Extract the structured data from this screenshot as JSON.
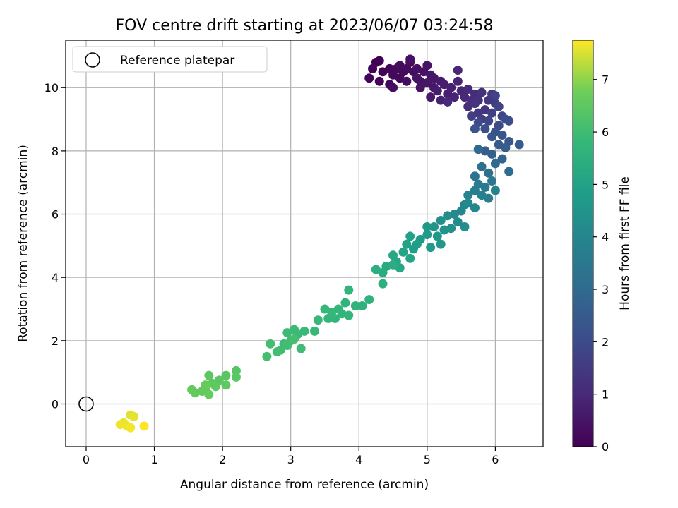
{
  "chart_data": {
    "type": "scatter",
    "title": "FOV centre drift starting at 2023/06/07 03:24:58",
    "xlabel": "Angular distance from reference (arcmin)",
    "ylabel": "Rotation from reference (arcmin)",
    "xlim": [
      -0.3,
      6.7
    ],
    "ylim": [
      -1.35,
      11.5
    ],
    "xticks": [
      0,
      1,
      2,
      3,
      4,
      5,
      6
    ],
    "yticks": [
      0,
      2,
      4,
      6,
      8,
      10
    ],
    "grid": true,
    "legend": {
      "location": "top-left",
      "entries": [
        "Reference platepar"
      ]
    },
    "reference_point": {
      "x": 0,
      "y": 0,
      "label": "Reference platepar"
    },
    "colorbar": {
      "label": "Hours from first FF file",
      "colormap": "viridis",
      "range": [
        0,
        7.75
      ],
      "ticks": [
        0,
        1,
        2,
        3,
        4,
        5,
        6,
        7
      ]
    },
    "points": [
      [
        4.25,
        10.8,
        0.0
      ],
      [
        4.3,
        10.85,
        0.03
      ],
      [
        4.2,
        10.6,
        0.05
      ],
      [
        4.15,
        10.3,
        0.07
      ],
      [
        4.35,
        10.5,
        0.09
      ],
      [
        4.3,
        10.2,
        0.11
      ],
      [
        4.45,
        10.6,
        0.13
      ],
      [
        4.5,
        10.4,
        0.15
      ],
      [
        4.45,
        10.1,
        0.17
      ],
      [
        4.55,
        10.6,
        0.19
      ],
      [
        4.6,
        10.3,
        0.21
      ],
      [
        4.65,
        10.5,
        0.23
      ],
      [
        4.6,
        10.7,
        0.25
      ],
      [
        4.7,
        10.6,
        0.27
      ],
      [
        4.75,
        10.8,
        0.29
      ],
      [
        4.7,
        10.2,
        0.31
      ],
      [
        4.5,
        10.0,
        0.33
      ],
      [
        4.8,
        10.5,
        0.35
      ],
      [
        4.75,
        10.9,
        0.37
      ],
      [
        4.85,
        10.6,
        0.39
      ],
      [
        4.9,
        10.2,
        0.41
      ],
      [
        4.95,
        10.5,
        0.43
      ],
      [
        5.0,
        10.7,
        0.45
      ],
      [
        4.85,
        10.3,
        0.47
      ],
      [
        4.9,
        10.0,
        0.49
      ],
      [
        5.05,
        10.4,
        0.51
      ],
      [
        5.0,
        10.15,
        0.53
      ],
      [
        5.1,
        10.3,
        0.55
      ],
      [
        5.1,
        10.0,
        0.58
      ],
      [
        5.2,
        10.2,
        0.62
      ],
      [
        5.05,
        9.7,
        0.65
      ],
      [
        5.15,
        9.9,
        0.68
      ],
      [
        5.25,
        10.1,
        0.72
      ],
      [
        5.3,
        9.8,
        0.75
      ],
      [
        5.35,
        10.0,
        0.78
      ],
      [
        5.2,
        9.6,
        0.82
      ],
      [
        5.4,
        9.7,
        0.85
      ],
      [
        5.45,
        10.2,
        0.88
      ],
      [
        5.5,
        9.9,
        0.92
      ],
      [
        5.45,
        10.55,
        0.95
      ],
      [
        5.55,
        9.7,
        0.98
      ],
      [
        5.3,
        9.55,
        1.02
      ],
      [
        5.6,
        9.95,
        1.05
      ],
      [
        5.65,
        9.6,
        1.08
      ],
      [
        5.7,
        9.8,
        1.12
      ],
      [
        5.6,
        9.4,
        1.15
      ],
      [
        5.75,
        9.6,
        1.2
      ],
      [
        5.8,
        9.85,
        1.25
      ],
      [
        5.7,
        9.5,
        1.3
      ],
      [
        5.85,
        9.3,
        1.35
      ],
      [
        5.9,
        9.6,
        1.4
      ],
      [
        5.75,
        9.2,
        1.45
      ],
      [
        5.95,
        9.8,
        1.5
      ],
      [
        6.0,
        9.5,
        1.55
      ],
      [
        5.65,
        9.1,
        1.6
      ],
      [
        5.8,
        9.0,
        1.65
      ],
      [
        5.95,
        9.2,
        1.7
      ],
      [
        6.05,
        9.4,
        1.75
      ],
      [
        6.0,
        9.75,
        1.8
      ],
      [
        5.9,
        8.95,
        1.85
      ],
      [
        6.1,
        9.1,
        1.9
      ],
      [
        5.75,
        8.9,
        1.95
      ],
      [
        6.05,
        8.8,
        2.0
      ],
      [
        6.15,
        9.0,
        2.05
      ],
      [
        6.2,
        8.95,
        2.1
      ],
      [
        5.85,
        8.7,
        2.15
      ],
      [
        6.0,
        8.6,
        2.2
      ],
      [
        5.7,
        8.7,
        2.25
      ],
      [
        6.1,
        8.5,
        2.3
      ],
      [
        5.95,
        8.45,
        2.35
      ],
      [
        6.2,
        8.3,
        2.4
      ],
      [
        6.05,
        8.2,
        2.45
      ],
      [
        6.35,
        8.2,
        2.5
      ],
      [
        6.15,
        8.1,
        2.55
      ],
      [
        5.85,
        8.0,
        2.6
      ],
      [
        5.95,
        7.9,
        2.7
      ],
      [
        6.1,
        7.75,
        2.8
      ],
      [
        6.0,
        7.6,
        2.9
      ],
      [
        5.75,
        8.05,
        3.0
      ],
      [
        6.2,
        7.35,
        3.05
      ],
      [
        5.8,
        7.5,
        3.15
      ],
      [
        5.9,
        7.3,
        3.25
      ],
      [
        5.7,
        7.2,
        3.35
      ],
      [
        5.95,
        7.05,
        3.45
      ],
      [
        5.85,
        6.85,
        3.55
      ],
      [
        5.75,
        6.95,
        3.62
      ],
      [
        5.9,
        6.5,
        3.68
      ],
      [
        5.7,
        6.75,
        3.75
      ],
      [
        6.0,
        6.75,
        3.8
      ],
      [
        5.8,
        6.6,
        3.85
      ],
      [
        5.6,
        6.6,
        3.9
      ],
      [
        5.55,
        6.3,
        3.95
      ],
      [
        5.7,
        6.2,
        4.0
      ],
      [
        5.5,
        6.1,
        4.05
      ],
      [
        5.6,
        6.35,
        4.1
      ],
      [
        5.4,
        6.0,
        4.15
      ],
      [
        5.45,
        5.75,
        4.2
      ],
      [
        5.3,
        5.95,
        4.25
      ],
      [
        5.55,
        5.6,
        4.3
      ],
      [
        5.35,
        5.55,
        4.35
      ],
      [
        5.2,
        5.8,
        4.4
      ],
      [
        5.25,
        5.5,
        4.45
      ],
      [
        5.1,
        5.6,
        4.5
      ],
      [
        5.15,
        5.3,
        4.55
      ],
      [
        5.0,
        5.6,
        4.6
      ],
      [
        5.2,
        5.05,
        4.65
      ],
      [
        5.0,
        5.35,
        4.7
      ],
      [
        4.9,
        5.2,
        4.75
      ],
      [
        5.05,
        4.95,
        4.8
      ],
      [
        4.85,
        5.05,
        4.85
      ],
      [
        4.8,
        4.9,
        4.9
      ],
      [
        4.75,
        5.3,
        4.95
      ],
      [
        4.7,
        5.05,
        5.0
      ],
      [
        4.65,
        4.8,
        5.05
      ],
      [
        4.75,
        4.6,
        5.1
      ],
      [
        4.55,
        4.5,
        5.15
      ],
      [
        4.5,
        4.7,
        5.2
      ],
      [
        4.6,
        4.3,
        5.25
      ],
      [
        4.4,
        4.35,
        5.3
      ],
      [
        4.35,
        4.15,
        5.35
      ],
      [
        4.5,
        4.4,
        5.4
      ],
      [
        4.25,
        4.25,
        5.45
      ],
      [
        4.35,
        3.8,
        5.5
      ],
      [
        4.05,
        3.1,
        5.55
      ],
      [
        4.15,
        3.3,
        5.6
      ],
      [
        3.95,
        3.1,
        5.62
      ],
      [
        3.8,
        3.2,
        5.65
      ],
      [
        3.85,
        3.6,
        5.68
      ],
      [
        3.75,
        2.85,
        5.7
      ],
      [
        3.7,
        3.0,
        5.72
      ],
      [
        3.65,
        2.7,
        5.74
      ],
      [
        3.55,
        2.7,
        5.76
      ],
      [
        3.85,
        2.8,
        5.78
      ],
      [
        3.5,
        3.0,
        5.8
      ],
      [
        3.6,
        2.9,
        5.82
      ],
      [
        3.4,
        2.65,
        5.84
      ],
      [
        3.35,
        2.3,
        5.86
      ],
      [
        3.2,
        2.3,
        5.88
      ],
      [
        3.1,
        2.2,
        5.9
      ],
      [
        3.05,
        2.35,
        5.92
      ],
      [
        2.95,
        2.25,
        5.94
      ],
      [
        3.0,
        2.0,
        5.96
      ],
      [
        2.9,
        1.9,
        5.98
      ],
      [
        2.85,
        1.7,
        6.0
      ],
      [
        3.15,
        1.75,
        6.02
      ],
      [
        2.95,
        1.85,
        6.04
      ],
      [
        2.7,
        1.9,
        6.06
      ],
      [
        2.8,
        1.65,
        6.08
      ],
      [
        2.65,
        1.5,
        6.1
      ],
      [
        3.05,
        2.05,
        6.12
      ],
      [
        2.2,
        1.05,
        6.4
      ],
      [
        2.05,
        0.9,
        6.42
      ],
      [
        2.2,
        0.85,
        6.44
      ],
      [
        1.95,
        0.75,
        6.46
      ],
      [
        1.8,
        0.9,
        6.48
      ],
      [
        1.85,
        0.65,
        6.5
      ],
      [
        2.05,
        0.6,
        6.52
      ],
      [
        1.9,
        0.55,
        6.54
      ],
      [
        1.75,
        0.45,
        6.56
      ],
      [
        1.6,
        0.35,
        6.58
      ],
      [
        1.55,
        0.45,
        6.6
      ],
      [
        1.7,
        0.4,
        6.62
      ],
      [
        1.8,
        0.3,
        6.64
      ],
      [
        1.75,
        0.6,
        6.66
      ],
      [
        0.65,
        -0.35,
        7.55
      ],
      [
        0.7,
        -0.4,
        7.58
      ],
      [
        0.55,
        -0.6,
        7.61
      ],
      [
        0.5,
        -0.65,
        7.64
      ],
      [
        0.6,
        -0.7,
        7.67
      ],
      [
        0.65,
        -0.75,
        7.7
      ],
      [
        0.85,
        -0.7,
        7.73
      ]
    ]
  }
}
